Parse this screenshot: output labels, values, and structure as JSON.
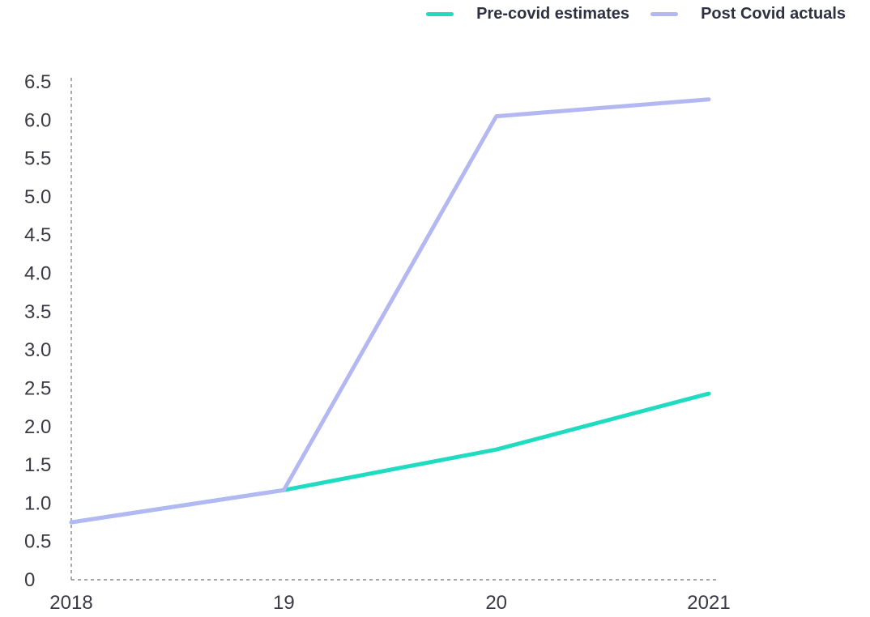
{
  "chart_data": {
    "type": "line",
    "x": [
      "2018",
      "19",
      "20",
      "2021"
    ],
    "series": [
      {
        "name": "Pre-covid estimates",
        "color": "#1fdcc1",
        "values": [
          0.75,
          1.17,
          1.7,
          2.43
        ]
      },
      {
        "name": "Post Covid actuals",
        "color": "#b3b8f2",
        "values": [
          0.75,
          1.17,
          6.05,
          6.27
        ]
      }
    ],
    "yticks": [
      "0",
      "0.5",
      "1.0",
      "1.5",
      "2.0",
      "2.5",
      "3.0",
      "3.5",
      "4.0",
      "4.5",
      "5.0",
      "5.5",
      "6.0",
      "6.5"
    ],
    "ylim": [
      0,
      6.5
    ],
    "legend_position": "top-right",
    "grid": false
  }
}
